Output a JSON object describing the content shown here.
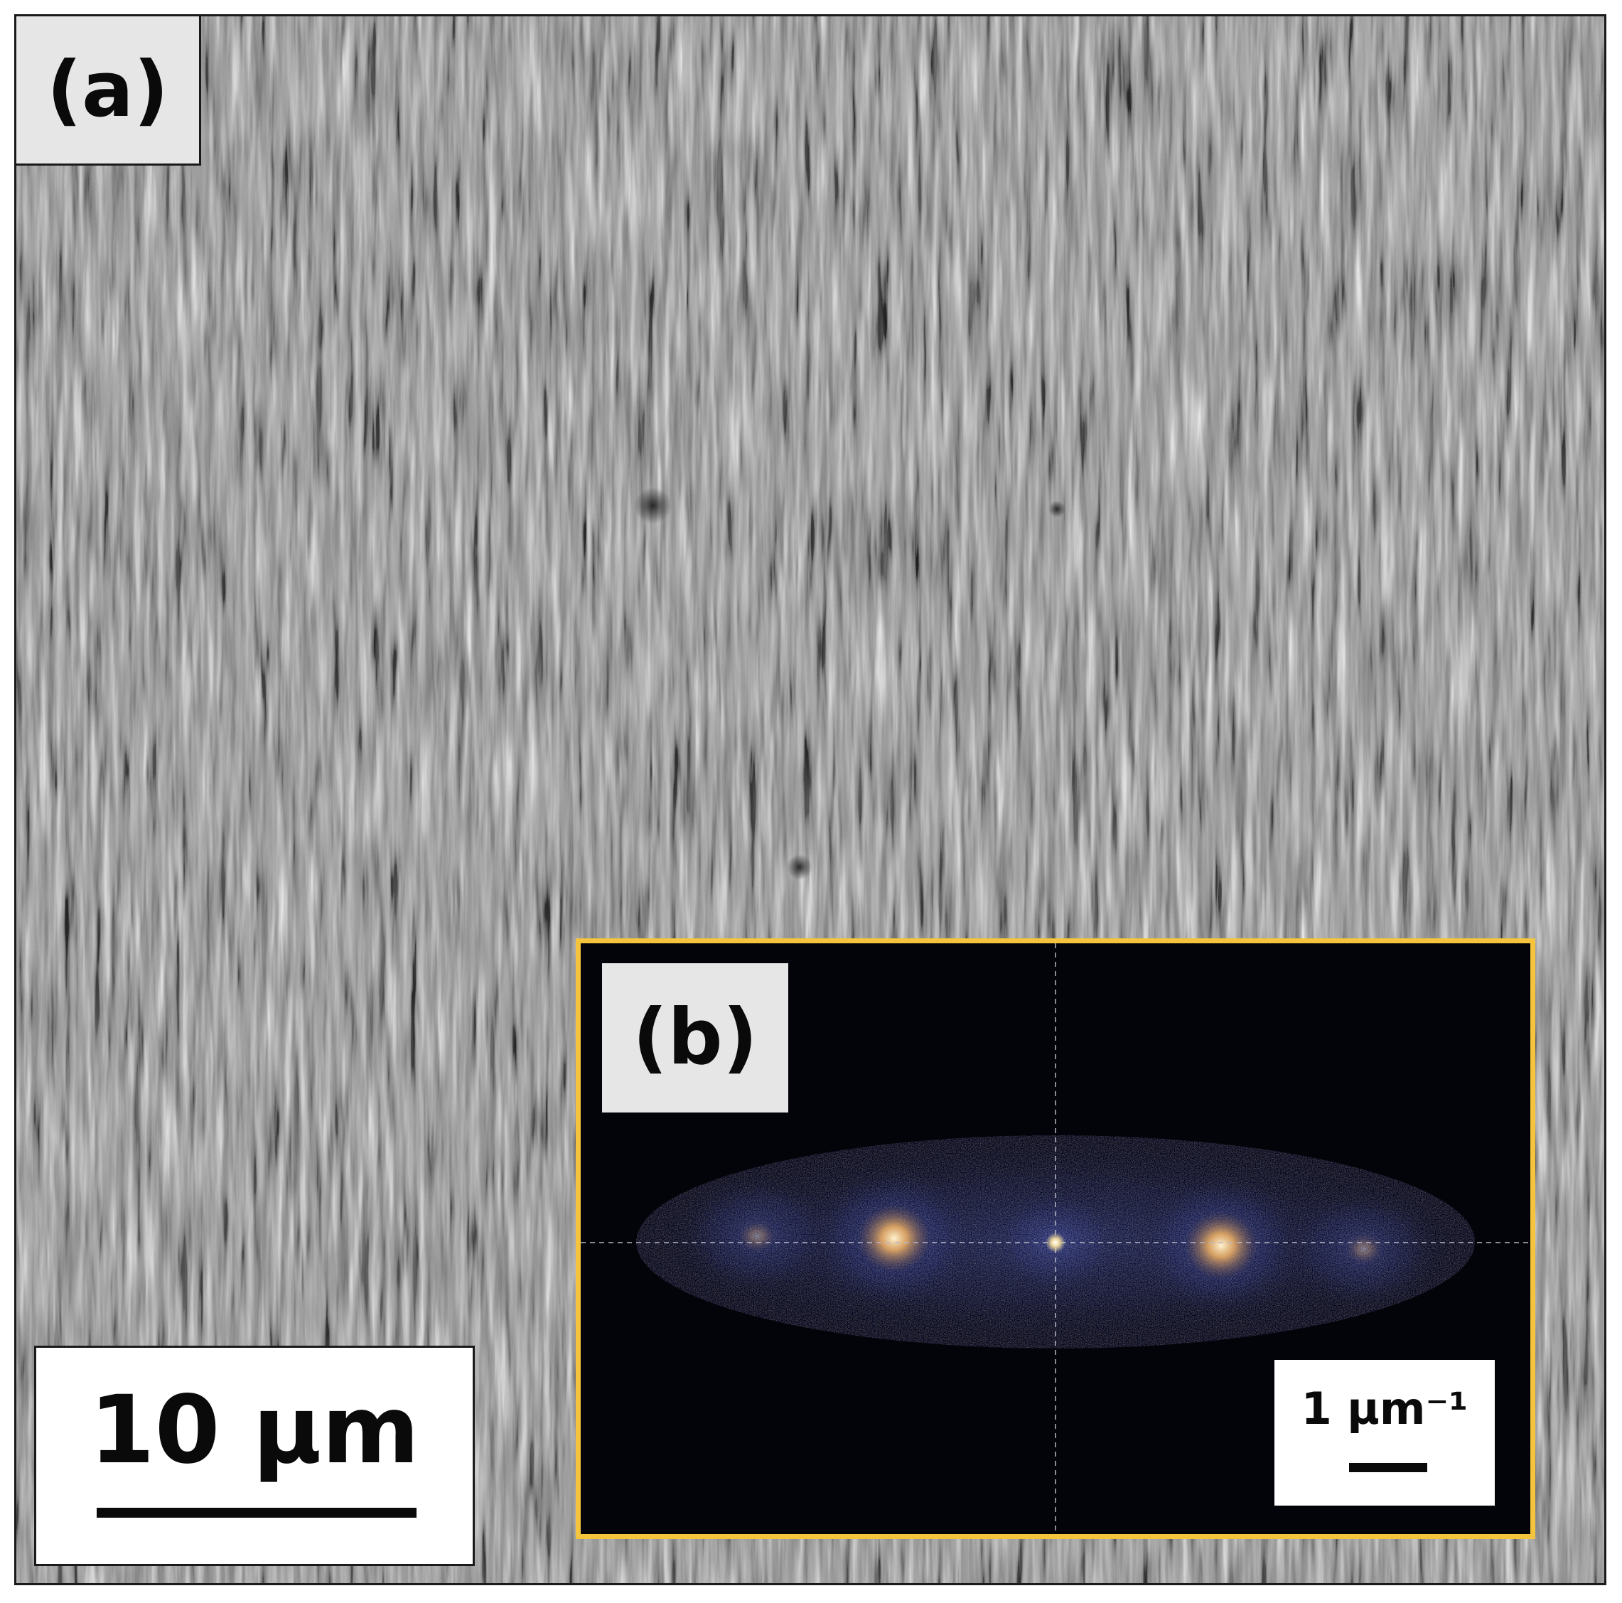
{
  "panel_a": {
    "label": "(a)",
    "scale_bar_text": "10 µm"
  },
  "panel_b": {
    "label": "(b)",
    "scale_bar_text": "1 µm⁻¹"
  },
  "colors": {
    "inset_border": "#f4c43c",
    "fft_background": "#03030a",
    "fft_halo": "#2a3470",
    "fft_peak": "#ffdca0",
    "sem_mid_gray": "#8a8a8a"
  }
}
